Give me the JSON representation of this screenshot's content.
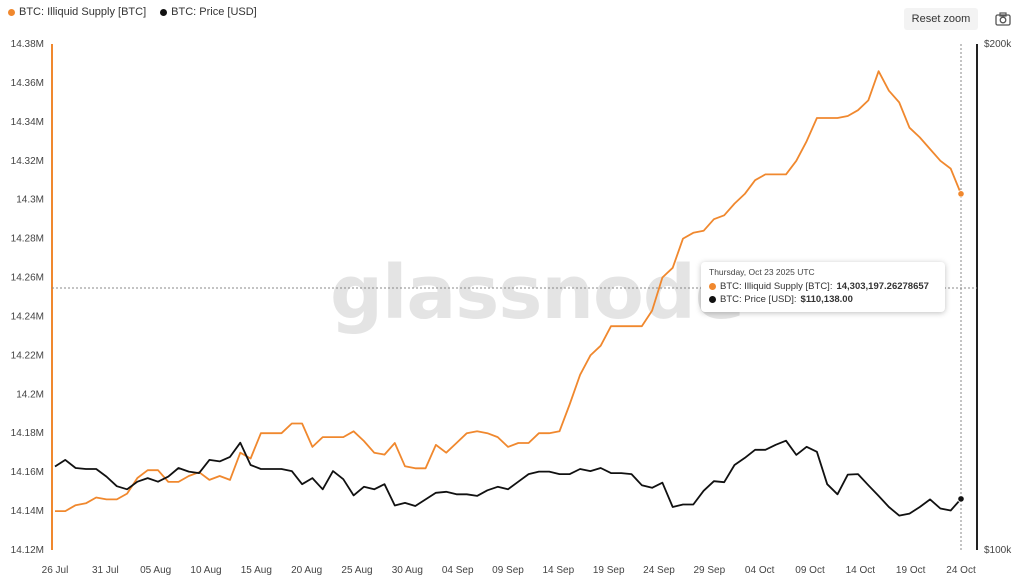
{
  "legend": [
    {
      "label": "BTC: Illiquid Supply [BTC]",
      "color": "#f0882e"
    },
    {
      "label": "BTC: Price [USD]",
      "color": "#111111"
    }
  ],
  "toolbar": {
    "reset_zoom_label": "Reset zoom",
    "camera_icon": "camera-icon"
  },
  "watermark": "glassnode",
  "tooltip": {
    "date": "Thursday, Oct 23 2025 UTC",
    "rows": [
      {
        "series": "BTC: Illiquid Supply [BTC]:",
        "value": "14,303,197.26278657",
        "color": "#f0882e"
      },
      {
        "series": "BTC: Price [USD]:",
        "value": "$110,138.00",
        "color": "#111111"
      }
    ]
  },
  "chart_data": {
    "type": "line",
    "title": "",
    "xlabel": "",
    "ylabel": "",
    "x_ticks": [
      "26 Jul",
      "31 Jul",
      "05 Aug",
      "10 Aug",
      "15 Aug",
      "20 Aug",
      "25 Aug",
      "30 Aug",
      "04 Sep",
      "09 Sep",
      "14 Sep",
      "19 Sep",
      "24 Sep",
      "29 Sep",
      "04 Oct",
      "09 Oct",
      "14 Oct",
      "19 Oct",
      "24 Oct"
    ],
    "y_left": {
      "ticks": [
        "14.12M",
        "14.14M",
        "14.16M",
        "14.18M",
        "14.2M",
        "14.22M",
        "14.24M",
        "14.26M",
        "14.28M",
        "14.3M",
        "14.32M",
        "14.34M",
        "14.36M",
        "14.38M"
      ],
      "range": [
        14120000,
        14380000
      ]
    },
    "y_right": {
      "ticks": [
        "$100k",
        "$200k"
      ],
      "range": [
        100000,
        200000
      ]
    },
    "grid": false,
    "legend_position": "top-left",
    "series": [
      {
        "name": "BTC: Illiquid Supply [BTC]",
        "axis": "left",
        "color": "#f0882e",
        "values": [
          14140000,
          14140000,
          14143000,
          14144000,
          14147000,
          14146000,
          14146000,
          14149000,
          14157000,
          14161000,
          14161000,
          14155000,
          14155000,
          14158000,
          14160000,
          14156000,
          14158000,
          14156000,
          14170000,
          14167000,
          14180000,
          14180000,
          14180000,
          14185000,
          14185000,
          14173000,
          14178000,
          14178000,
          14178000,
          14181000,
          14176000,
          14170000,
          14169000,
          14175000,
          14163000,
          14162000,
          14162000,
          14174000,
          14170000,
          14175000,
          14180000,
          14181000,
          14180000,
          14178000,
          14173000,
          14175000,
          14175000,
          14180000,
          14180000,
          14181000,
          14195000,
          14210000,
          14220000,
          14225000,
          14235000,
          14235000,
          14235000,
          14235000,
          14243000,
          14260000,
          14265000,
          14280000,
          14283000,
          14284000,
          14290000,
          14292000,
          14298000,
          14303000,
          14310000,
          14313000,
          14313000,
          14313000,
          14320000,
          14330000,
          14342000,
          14342000,
          14342000,
          14343000,
          14346000,
          14351000,
          14366000,
          14356000,
          14350000,
          14337000,
          14332000,
          14326000,
          14320000,
          14316000,
          14303000
        ]
      },
      {
        "name": "BTC: Price [USD]",
        "axis": "right",
        "color": "#111111",
        "values": [
          116500,
          117800,
          116200,
          116000,
          116000,
          114500,
          112600,
          112000,
          113500,
          114200,
          113500,
          114500,
          116200,
          115500,
          115200,
          117800,
          117500,
          118400,
          121200,
          116800,
          116000,
          116000,
          116000,
          115600,
          113000,
          114200,
          112000,
          115600,
          114000,
          110800,
          112500,
          112000,
          113000,
          108800,
          109300,
          108700,
          110000,
          111300,
          111500,
          111000,
          111000,
          110700,
          111800,
          112500,
          112000,
          113500,
          115000,
          115500,
          115500,
          115000,
          115000,
          116000,
          115600,
          116200,
          115200,
          115200,
          115000,
          112800,
          112300,
          113300,
          108500,
          109000,
          109000,
          111700,
          113600,
          113400,
          116800,
          118200,
          119800,
          119800,
          120800,
          121600,
          118800,
          120400,
          119400,
          113000,
          111000,
          114900,
          115000,
          112800,
          110700,
          108500,
          106800,
          107200,
          108500,
          110000,
          108200,
          107800,
          110100
        ]
      }
    ]
  }
}
